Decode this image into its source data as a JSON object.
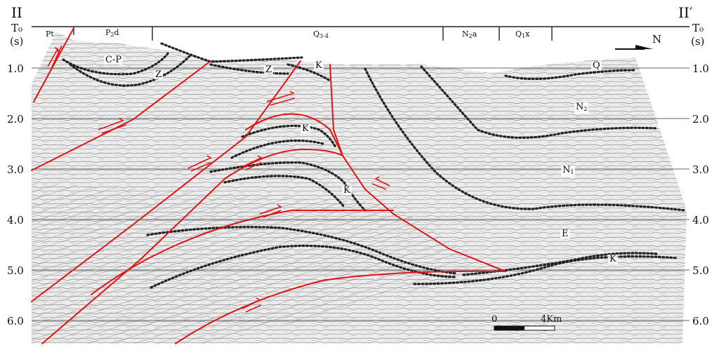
{
  "section": {
    "left_label": "II",
    "right_label": "II",
    "right_prime": "′",
    "north_label": "N"
  },
  "axis": {
    "title": "T₀",
    "unit": "(s)",
    "ticks": [
      "1.0",
      "2.0",
      "3.0",
      "4.0",
      "5.0",
      "6.0"
    ]
  },
  "surface_units": [
    "Pt",
    "P",
    "2",
    "d",
    "Q",
    "3-4",
    "N",
    "2",
    "a",
    "Q",
    "1",
    "x"
  ],
  "formations": {
    "CP": "C-P",
    "Z1": "Z",
    "Z2": "Z",
    "K1": "K",
    "K2": "K",
    "K3": "K",
    "K4": "K",
    "Q": "Q",
    "N2": "N",
    "N2_sub": "2",
    "N1": "N",
    "N1_sub": "1",
    "E": "E"
  },
  "scale_bar": {
    "start": "0",
    "end": "4Km"
  },
  "colors": {
    "fault": "#e01414",
    "horizon": "#222222",
    "grid": "#333333"
  }
}
